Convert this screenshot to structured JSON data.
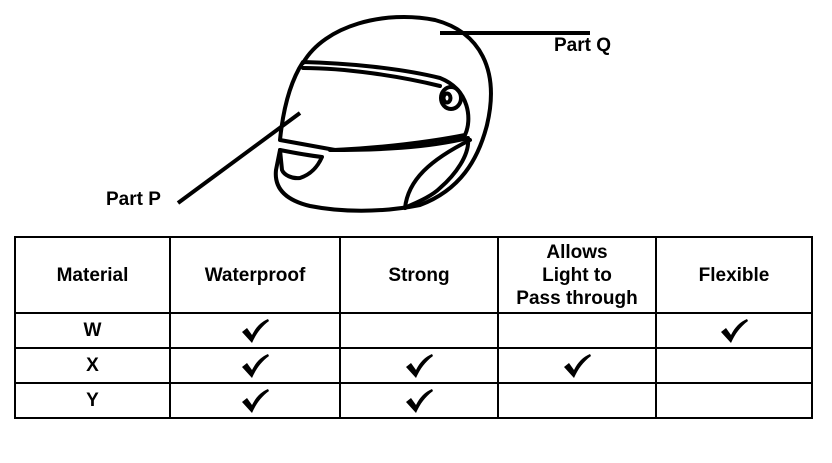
{
  "labels": {
    "part_q": "Part Q",
    "part_p": "Part P"
  },
  "table": {
    "headers": [
      "Material",
      "Waterproof",
      "Strong",
      [
        "Allows",
        "Light to",
        "Pass through"
      ],
      "Flexible"
    ],
    "rows": [
      {
        "material": "W",
        "ticks": [
          true,
          false,
          false,
          true
        ]
      },
      {
        "material": "X",
        "ticks": [
          true,
          true,
          true,
          false
        ]
      },
      {
        "material": "Y",
        "ticks": [
          true,
          true,
          false,
          false
        ]
      }
    ]
  },
  "icons": {
    "tick": "check-mark-icon",
    "helmet": "helmet-icon"
  }
}
